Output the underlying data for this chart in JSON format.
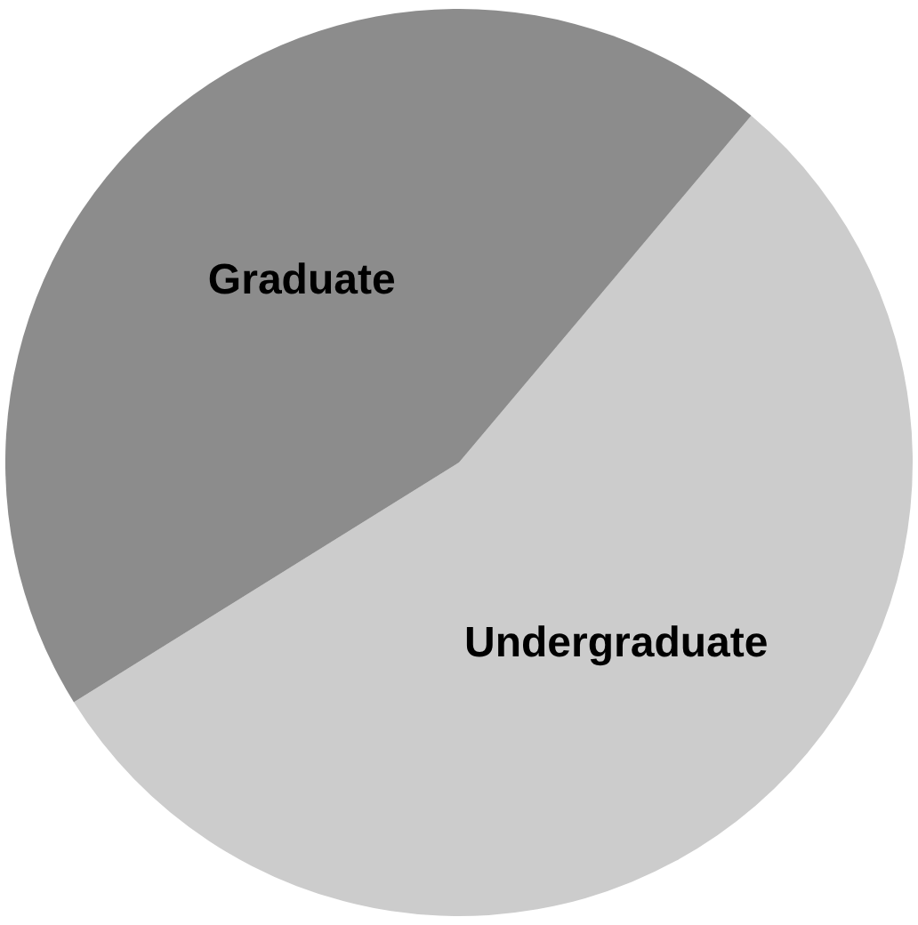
{
  "chart_data": {
    "type": "pie",
    "categories": [
      "Undergraduate",
      "Graduate"
    ],
    "values": [
      55,
      45
    ],
    "colors": [
      "#cccccc",
      "#8c8c8c"
    ]
  }
}
